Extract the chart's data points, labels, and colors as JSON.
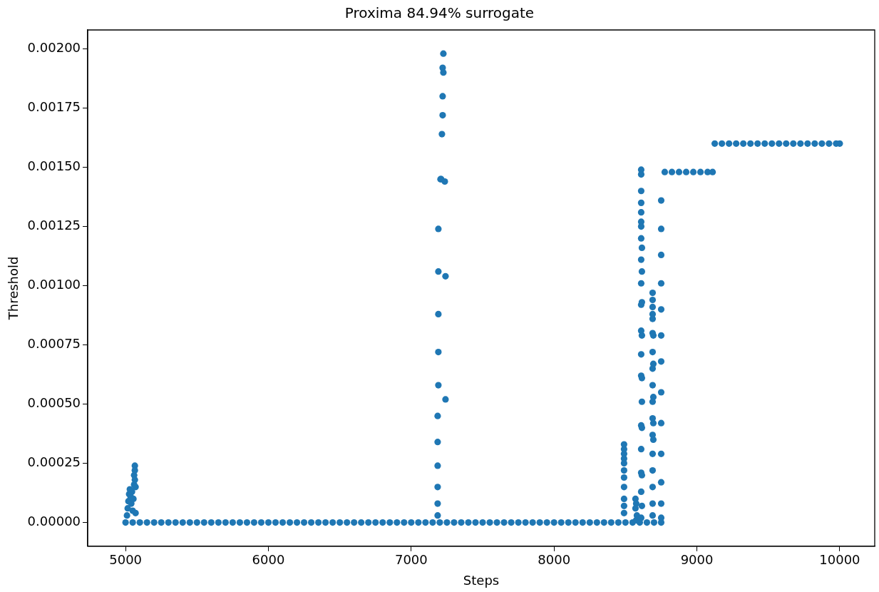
{
  "chart_data": {
    "type": "scatter",
    "title": "Proxima 84.94% surrogate",
    "xlabel": "Steps",
    "ylabel": "Threshold",
    "color": "#1f77b4",
    "marker": "circle",
    "grid": false,
    "legend": false,
    "xlim": [
      4735,
      10245
    ],
    "xticks": [
      5000,
      6000,
      7000,
      8000,
      9000,
      10000
    ],
    "ylim": [
      -0.0001,
      0.00208
    ],
    "yticks": [
      {
        "value": 0,
        "label": "0.00000"
      },
      {
        "value": 0.00025,
        "label": "0.00025"
      },
      {
        "value": 0.0005,
        "label": "0.00050"
      },
      {
        "value": 0.00075,
        "label": "0.00075"
      },
      {
        "value": 0.001,
        "label": "0.00100"
      },
      {
        "value": 0.00125,
        "label": "0.00125"
      },
      {
        "value": 0.0015,
        "label": "0.00150"
      },
      {
        "value": 0.00175,
        "label": "0.00175"
      },
      {
        "value": 0.002,
        "label": "0.00200"
      }
    ],
    "x": [
      5000,
      5050,
      5100,
      5150,
      5200,
      5250,
      5300,
      5350,
      5400,
      5450,
      5500,
      5550,
      5600,
      5650,
      5700,
      5750,
      5800,
      5850,
      5900,
      5950,
      6000,
      6050,
      6100,
      6150,
      6200,
      6250,
      6300,
      6350,
      6400,
      6450,
      6500,
      6550,
      6600,
      6650,
      6700,
      6750,
      6800,
      6850,
      6900,
      6950,
      7000,
      7050,
      7100,
      7150,
      7200,
      7250,
      7300,
      7350,
      7400,
      7450,
      7500,
      7550,
      7600,
      7650,
      7700,
      7750,
      7800,
      7850,
      7900,
      7950,
      8000,
      8050,
      8100,
      8150,
      8200,
      8250,
      8300,
      8350,
      8400,
      8450,
      8500,
      8550,
      8600,
      8650,
      8700,
      8750,
      8775,
      8825,
      8875,
      8925,
      8975,
      9025,
      9075,
      9110,
      9125,
      9175,
      9225,
      9275,
      9325,
      9375,
      9425,
      9475,
      9525,
      9575,
      9625,
      9675,
      9725,
      9775,
      9825,
      9875,
      9925,
      9975,
      10000,
      5010,
      5015,
      5020,
      5025,
      5030,
      5035,
      5040,
      5045,
      5050,
      5055,
      5060,
      5060,
      5065,
      5065,
      5065,
      5070,
      5070,
      7225,
      7220,
      7225,
      7220,
      7220,
      7215,
      7205,
      7210,
      7235,
      7190,
      7190,
      7240,
      7190,
      7190,
      7190,
      7240,
      7185,
      7185,
      7185,
      7185,
      7185,
      7185,
      8490,
      8490,
      8490,
      8490,
      8490,
      8490,
      8490,
      8490,
      8490,
      8490,
      8490,
      8570,
      8575,
      8570,
      8580,
      8575,
      8610,
      8610,
      8610,
      8610,
      8610,
      8610,
      8610,
      8610,
      8615,
      8610,
      8615,
      8610,
      8615,
      8610,
      8610,
      8615,
      8610,
      8610,
      8615,
      8615,
      8610,
      8615,
      8610,
      8610,
      8615,
      8610,
      8615,
      8610,
      8690,
      8690,
      8690,
      8690,
      8690,
      8690,
      8695,
      8690,
      8695,
      8690,
      8690,
      8695,
      8690,
      8690,
      8695,
      8690,
      8695,
      8690,
      8690,
      8690,
      8690,
      8690,
      8750,
      8750,
      8750,
      8750,
      8750,
      8750,
      8750,
      8750,
      8750,
      8750,
      8750,
      8750,
      8750
    ],
    "values": [
      0,
      0,
      0,
      0,
      0,
      0,
      0,
      0,
      0,
      0,
      0,
      0,
      0,
      0,
      0,
      0,
      0,
      0,
      0,
      0,
      0,
      0,
      0,
      0,
      0,
      0,
      0,
      0,
      0,
      0,
      0,
      0,
      0,
      0,
      0,
      0,
      0,
      0,
      0,
      0,
      0,
      0,
      0,
      0,
      0,
      0,
      0,
      0,
      0,
      0,
      0,
      0,
      0,
      0,
      0,
      0,
      0,
      0,
      0,
      0,
      0,
      0,
      0,
      0,
      0,
      0,
      0,
      0,
      0,
      0,
      0,
      0,
      0,
      0,
      0,
      0,
      0.00148,
      0.00148,
      0.00148,
      0.00148,
      0.00148,
      0.00148,
      0.00148,
      0.00148,
      0.0016,
      0.0016,
      0.0016,
      0.0016,
      0.0016,
      0.0016,
      0.0016,
      0.0016,
      0.0016,
      0.0016,
      0.0016,
      0.0016,
      0.0016,
      0.0016,
      0.0016,
      0.0016,
      0.0016,
      0.0016,
      0.0016,
      3e-05,
      6e-05,
      9e-05,
      0.00012,
      0.00014,
      0.00011,
      8e-05,
      0.00013,
      5e-05,
      0.0001,
      0.00016,
      0.0002,
      0.00024,
      0.00022,
      0.00018,
      0.00015,
      4e-05,
      0.00198,
      0.00192,
      0.0019,
      0.0018,
      0.00172,
      0.00164,
      0.00145,
      0.00145,
      0.00144,
      0.00124,
      0.00106,
      0.00104,
      0.00088,
      0.00072,
      0.00058,
      0.00052,
      0.00045,
      0.00034,
      0.00024,
      0.00015,
      8e-05,
      3e-05,
      0.00033,
      0.00031,
      0.00029,
      0.00027,
      0.00025,
      0.00022,
      0.00019,
      0.00015,
      0.0001,
      7e-05,
      4e-05,
      0.0001,
      8e-05,
      6e-05,
      3e-05,
      1e-05,
      0.00149,
      0.00147,
      0.0014,
      0.00135,
      0.00131,
      0.00127,
      0.00125,
      0.0012,
      0.00116,
      0.00111,
      0.00106,
      0.00101,
      0.00093,
      0.00092,
      0.00081,
      0.00079,
      0.00071,
      0.00062,
      0.00061,
      0.00051,
      0.00041,
      0.0004,
      0.00031,
      0.00021,
      0.0002,
      0.00013,
      7e-05,
      2e-05,
      0.00097,
      0.00094,
      0.00091,
      0.00088,
      0.00086,
      0.0008,
      0.00079,
      0.00072,
      0.00067,
      0.00065,
      0.00058,
      0.00053,
      0.00051,
      0.00044,
      0.00042,
      0.00037,
      0.00035,
      0.00029,
      0.00022,
      0.00015,
      8e-05,
      3e-05,
      0.00136,
      0.00124,
      0.00113,
      0.00101,
      0.0009,
      0.00079,
      0.00068,
      0.00055,
      0.00042,
      0.00029,
      0.00017,
      8e-05,
      2e-05
    ]
  }
}
